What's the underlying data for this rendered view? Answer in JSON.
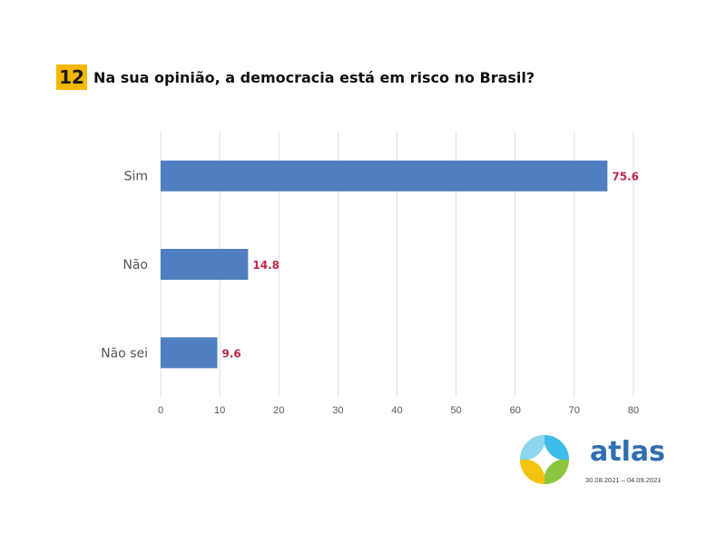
{
  "question": {
    "number": "12",
    "title": "Na sua opinião, a democracia está em risco no Brasil?"
  },
  "chart_data": {
    "type": "bar",
    "orientation": "horizontal",
    "categories": [
      "Sim",
      "Não",
      "Não sei"
    ],
    "values": [
      75.6,
      14.8,
      9.6
    ],
    "value_labels": [
      "75.6",
      "14.8",
      "9.6"
    ],
    "xlim": [
      0,
      80
    ],
    "x_ticks": [
      "0",
      "10",
      "20",
      "30",
      "40",
      "50",
      "60",
      "70",
      "80"
    ],
    "grid": true,
    "bar_color": "#4f7fbf",
    "label_color": "#c0264a"
  },
  "branding": {
    "name": "atlas",
    "date_range": "30.08.2021 – 04.09.2021",
    "colors": [
      "#f2c40f",
      "#3fbde9",
      "#8cc63f",
      "#2f6fb0"
    ]
  }
}
